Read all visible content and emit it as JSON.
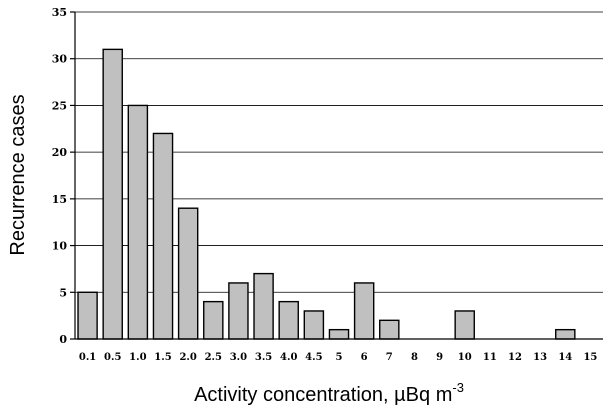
{
  "chart_data": {
    "type": "bar",
    "categories": [
      "0.1",
      "0.5",
      "1.0",
      "1.5",
      "2.0",
      "2.5",
      "3.0",
      "3.5",
      "4.0",
      "4.5",
      "5",
      "6",
      "7",
      "8",
      "9",
      "10",
      "11",
      "12",
      "13",
      "14",
      "15"
    ],
    "values": [
      5,
      31,
      25,
      22,
      14,
      4,
      6,
      7,
      4,
      3,
      1,
      6,
      2,
      0,
      0,
      3,
      0,
      0,
      0,
      1,
      0
    ],
    "ylim": [
      0,
      35
    ],
    "yticks": [
      0,
      5,
      10,
      15,
      20,
      25,
      30,
      35
    ],
    "grid": true,
    "xlabel": "Activity concentration, µBq m",
    "xlabel_superscript": "-3",
    "ylabel": "Recurrence cases",
    "bar_color": "#c0c0c0"
  }
}
